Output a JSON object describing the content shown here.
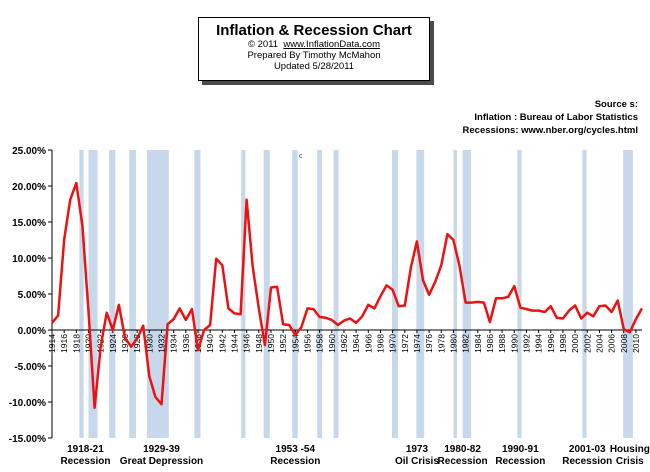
{
  "title": {
    "main": "Inflation & Recession Chart",
    "copyright": "© 2011",
    "site": "www.InflationData.com",
    "prepared": "Prepared By Timothy McMahon",
    "updated": "Updated 5/28/2011"
  },
  "sources": {
    "heading": "Source s:",
    "inflation": "Inflation : Bureau of Labor Statistics",
    "recessions": "Recessions: www.nber.org/cycles.html"
  },
  "stray_mark": "c",
  "colors": {
    "line": "#ee1111",
    "recession": "#c6d8ea",
    "axis": "#000000",
    "background": "#ffffff"
  },
  "chart_data": {
    "type": "line",
    "title": "Inflation & Recession Chart",
    "xlabel": "",
    "ylabel": "",
    "xlim": [
      1914,
      2011
    ],
    "ylim": [
      -0.15,
      0.25
    ],
    "y_ticks": [
      -0.15,
      -0.1,
      -0.05,
      0.0,
      0.05,
      0.1,
      0.15,
      0.2,
      0.25
    ],
    "y_tick_labels": [
      "-15.00%",
      "-10.00%",
      "-5.00%",
      "0.00%",
      "5.00%",
      "10.00%",
      "15.00%",
      "20.00%",
      "25.00%"
    ],
    "x_tick_labels": [
      "1914",
      "1916",
      "1918",
      "1920",
      "1922",
      "1924",
      "1926",
      "1928",
      "1930",
      "1932",
      "1934",
      "1936",
      "1938",
      "1940",
      "1942",
      "1944",
      "1946",
      "1948",
      "1950",
      "1952",
      "1954",
      "1956",
      "1958",
      "1960",
      "1962",
      "1964",
      "1966",
      "1968",
      "1970",
      "1972",
      "1974",
      "1976",
      "1978",
      "1980",
      "1982",
      "1984",
      "1986",
      "1988",
      "1990",
      "1992",
      "1994",
      "1996",
      "1998",
      "2000",
      "2002",
      "2004",
      "2006",
      "2008",
      "2010"
    ],
    "grid": false,
    "series": [
      {
        "x": [
          1914,
          1915,
          1916,
          1917,
          1918,
          1919,
          1920,
          1921,
          1922,
          1923,
          1924,
          1925,
          1926,
          1927,
          1928,
          1929,
          1930,
          1931,
          1932,
          1933,
          1934,
          1935,
          1936,
          1937,
          1938,
          1939,
          1940,
          1941,
          1942,
          1943,
          1944,
          1945,
          1946,
          1947,
          1948,
          1949,
          1950,
          1951,
          1952,
          1953,
          1954,
          1955,
          1956,
          1957,
          1958,
          1959,
          1960,
          1961,
          1962,
          1963,
          1964,
          1965,
          1966,
          1967,
          1968,
          1969,
          1970,
          1971,
          1972,
          1973,
          1974,
          1975,
          1976,
          1977,
          1978,
          1979,
          1980,
          1981,
          1982,
          1983,
          1984,
          1985,
          1986,
          1987,
          1988,
          1989,
          1990,
          1991,
          1992,
          1993,
          1994,
          1995,
          1996,
          1997,
          1998,
          1999,
          2000,
          2001,
          2002,
          2003,
          2004,
          2005,
          2006,
          2007,
          2008,
          2009,
          2010,
          2011
        ],
        "y": [
          0.01,
          0.02,
          0.126,
          0.181,
          0.204,
          0.145,
          0.026,
          -0.108,
          -0.023,
          0.024,
          0.0,
          0.035,
          -0.011,
          -0.023,
          -0.012,
          0.006,
          -0.064,
          -0.093,
          -0.103,
          0.008,
          0.015,
          0.03,
          0.014,
          0.029,
          -0.028,
          0.0,
          0.007,
          0.099,
          0.09,
          0.03,
          0.023,
          0.022,
          0.181,
          0.088,
          0.03,
          -0.021,
          0.059,
          0.06,
          0.008,
          0.007,
          -0.007,
          0.004,
          0.03,
          0.029,
          0.018,
          0.017,
          0.014,
          0.007,
          0.013,
          0.016,
          0.01,
          0.019,
          0.035,
          0.03,
          0.047,
          0.062,
          0.056,
          0.033,
          0.034,
          0.087,
          0.123,
          0.069,
          0.049,
          0.067,
          0.09,
          0.133,
          0.125,
          0.089,
          0.038,
          0.038,
          0.039,
          0.038,
          0.011,
          0.044,
          0.044,
          0.046,
          0.061,
          0.031,
          0.029,
          0.027,
          0.027,
          0.025,
          0.033,
          0.017,
          0.016,
          0.027,
          0.034,
          0.016,
          0.024,
          0.019,
          0.033,
          0.034,
          0.025,
          0.041,
          0.001,
          -0.003,
          0.015,
          0.03
        ]
      }
    ],
    "recessions": [
      [
        1918.5,
        1919.2
      ],
      [
        1920.0,
        1921.5
      ],
      [
        1923.4,
        1924.4
      ],
      [
        1926.7,
        1927.8
      ],
      [
        1929.6,
        1933.2
      ],
      [
        1937.4,
        1938.4
      ],
      [
        1945.1,
        1945.8
      ],
      [
        1948.8,
        1949.8
      ],
      [
        1953.5,
        1954.4
      ],
      [
        1957.6,
        1958.4
      ],
      [
        1960.3,
        1961.1
      ],
      [
        1969.9,
        1970.9
      ],
      [
        1973.9,
        1975.2
      ],
      [
        1980.0,
        1980.6
      ],
      [
        1981.5,
        1982.9
      ],
      [
        1990.5,
        1991.2
      ],
      [
        2001.2,
        2001.9
      ],
      [
        2007.9,
        2009.5
      ]
    ],
    "annotations": [
      {
        "lines": [
          "1918-21",
          "Recession"
        ],
        "x": 1919.5
      },
      {
        "lines": [
          "1929-39",
          "Great Depression"
        ],
        "x": 1932
      },
      {
        "lines": [
          "1953 -54",
          "Recession"
        ],
        "x": 1954
      },
      {
        "lines": [
          "1973",
          "Oil Crisis"
        ],
        "x": 1974
      },
      {
        "lines": [
          "1980-82",
          "Recession"
        ],
        "x": 1981.5
      },
      {
        "lines": [
          "1990-91",
          "Recession"
        ],
        "x": 1991
      },
      {
        "lines": [
          "2001-03",
          "Recession"
        ],
        "x": 2002
      },
      {
        "lines": [
          "Housing",
          "Crisis"
        ],
        "x": 2009
      }
    ]
  }
}
